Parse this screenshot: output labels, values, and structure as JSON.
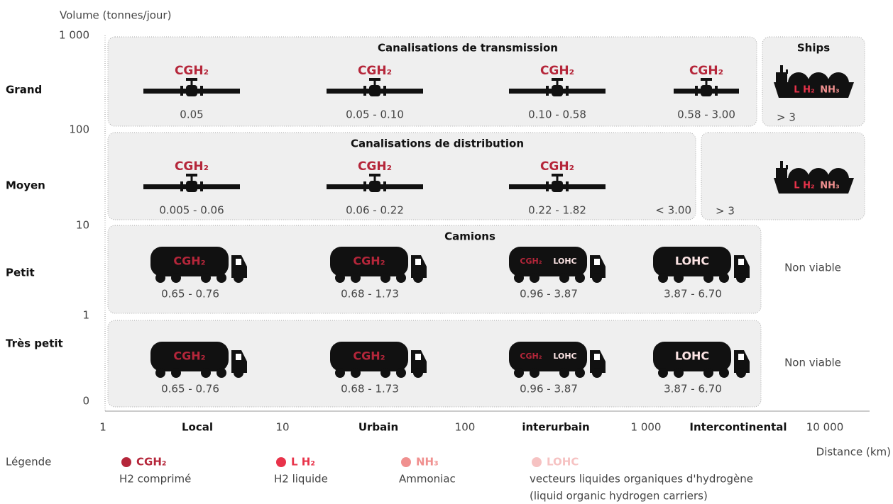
{
  "y_axis": {
    "title": "Volume (tonnes/jour)",
    "ticks": [
      "1 000",
      "100",
      "10",
      "1",
      "0"
    ]
  },
  "x_axis": {
    "title": "Distance (km)",
    "ticks": [
      "1",
      "10",
      "100",
      "1 000",
      "10 000"
    ],
    "categories": [
      "Local",
      "Urbain",
      "interurbain",
      "Intercontinental"
    ]
  },
  "rows": [
    "Grand",
    "Moyen",
    "Petit",
    "Très petit"
  ],
  "panels": [
    {
      "title": "Canalisations de transmission",
      "items": [
        {
          "carriers": [
            "CGH₂"
          ],
          "range": "0.05"
        },
        {
          "carriers": [
            "CGH₂"
          ],
          "range": "0.05 - 0.10"
        },
        {
          "carriers": [
            "CGH₂"
          ],
          "range": "0.10 - 0.58"
        },
        {
          "carriers": [
            "CGH₂"
          ],
          "range": "0.58 - 3.00"
        }
      ]
    },
    {
      "title": "Ships",
      "items": [
        {
          "carriers": [
            "L H₂",
            "NH₃"
          ],
          "range": "> 3"
        }
      ]
    },
    {
      "title": "Canalisations de distribution",
      "items": [
        {
          "carriers": [
            "CGH₂"
          ],
          "range": "0.005 - 0.06"
        },
        {
          "carriers": [
            "CGH₂"
          ],
          "range": "0.06 - 0.22"
        },
        {
          "carriers": [
            "CGH₂"
          ],
          "range": "0.22 - 1.82"
        }
      ],
      "note": "< 3.00"
    },
    {
      "items": [
        {
          "carriers": [
            "L H₂",
            "NH₃"
          ],
          "range": "> 3"
        }
      ]
    },
    {
      "title": "Camions",
      "items": [
        {
          "carriers": [
            "CGH₂"
          ],
          "range": "0.65 - 0.76"
        },
        {
          "carriers": [
            "CGH₂"
          ],
          "range": "0.68 - 1.73"
        },
        {
          "carriers": [
            "CGH₂",
            "LOHC"
          ],
          "range": "0.96 - 3.87"
        },
        {
          "carriers": [
            "LOHC"
          ],
          "range": "3.87 - 6.70"
        }
      ]
    },
    {
      "items": [
        {
          "carriers": [
            "CGH₂"
          ],
          "range": "0.65 - 0.76"
        },
        {
          "carriers": [
            "CGH₂"
          ],
          "range": "0.68 - 1.73"
        },
        {
          "carriers": [
            "CGH₂",
            "LOHC"
          ],
          "range": "0.96 - 3.87"
        },
        {
          "carriers": [
            "LOHC"
          ],
          "range": "3.87 - 6.70"
        }
      ]
    }
  ],
  "non_viable": [
    "Non viable",
    "Non viable"
  ],
  "legend": {
    "title": "Légende",
    "items": [
      {
        "name": "CGH₂",
        "color": "#b5263a",
        "description": [
          "H2 comprimé"
        ]
      },
      {
        "name": "L H₂",
        "color": "#e8334a",
        "description": [
          "H2 liquide"
        ]
      },
      {
        "name": "NH₃",
        "color": "#f0908f",
        "description": [
          "Ammoniac"
        ]
      },
      {
        "name": "LOHC",
        "color": "#f6c2c2",
        "description": [
          "vecteurs liquides organiques d'hydrogène",
          "(liquid organic hydrogen carriers)"
        ]
      }
    ]
  }
}
